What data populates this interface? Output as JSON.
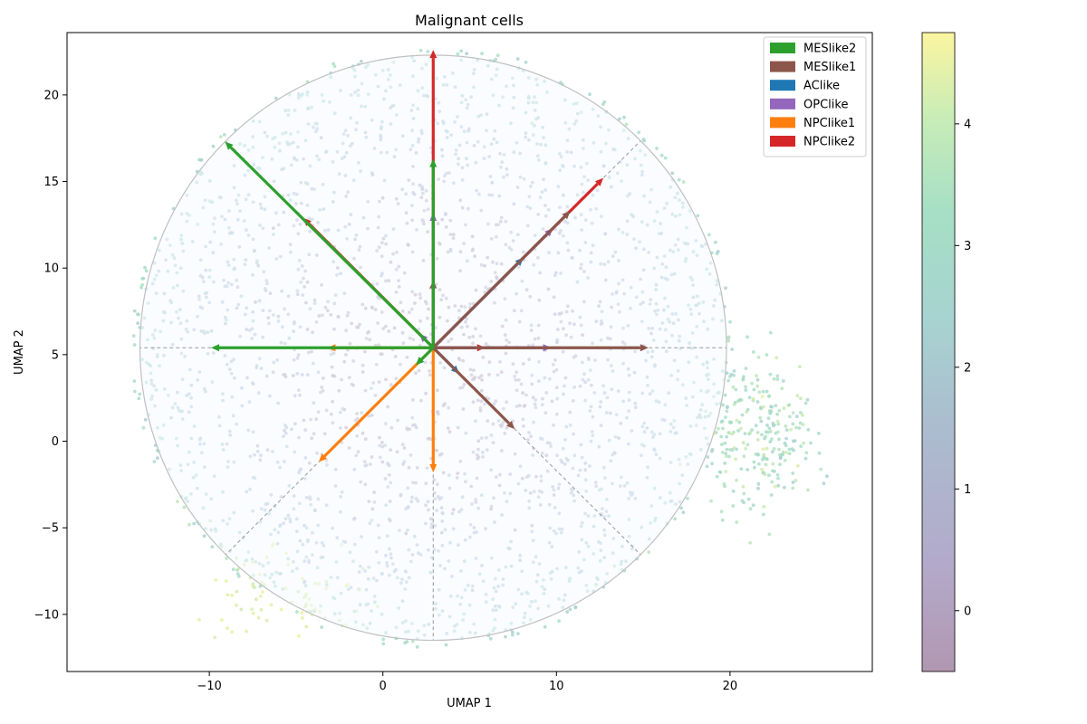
{
  "chart_data": {
    "type": "scatter",
    "title": "Malignant cells",
    "xlabel": "UMAP 1",
    "ylabel": "UMAP 2",
    "xlim": [
      -18.2,
      28.2
    ],
    "ylim": [
      -13.3,
      23.6
    ],
    "xticks": [
      -10,
      0,
      10,
      20
    ],
    "yticks": [
      -10,
      -5,
      0,
      5,
      10,
      15,
      20
    ],
    "grid": false,
    "legend_position": "top-right",
    "circle": {
      "center": [
        2.9,
        5.4
      ],
      "radius": 16.9
    },
    "sector_dividers_deg": [
      0,
      45,
      135,
      180,
      225,
      270,
      315
    ],
    "series": [
      {
        "name": "MESlike2",
        "color": "#2ca02c",
        "arrows": [
          [
            -9.1,
            17.3
          ],
          [
            2.9,
            16.3
          ],
          [
            -9.9,
            5.4
          ],
          [
            1.9,
            4.4
          ]
        ]
      },
      {
        "name": "MESlike1",
        "color": "#8c564b",
        "arrows": [
          [
            2.9,
            9.3
          ],
          [
            10.8,
            13.3
          ],
          [
            15.3,
            5.4
          ],
          [
            7.6,
            0.7
          ]
        ]
      },
      {
        "name": "AClike",
        "color": "#1f77b4",
        "arrows": [
          [
            8.1,
            10.6
          ],
          [
            4.4,
            3.9
          ]
        ]
      },
      {
        "name": "OPClike",
        "color": "#9467bd",
        "arrows": [
          [
            2.9,
            13.2
          ],
          [
            9.8,
            12.3
          ],
          [
            9.7,
            5.4
          ],
          [
            2.1,
            6.2
          ]
        ]
      },
      {
        "name": "NPClike1",
        "color": "#ff7f0e",
        "arrows": [
          [
            -3.2,
            5.4
          ],
          [
            -3.7,
            -1.2
          ],
          [
            2.9,
            -1.8
          ]
        ]
      },
      {
        "name": "NPClike2",
        "color": "#d62728",
        "arrows": [
          [
            2.9,
            22.6
          ],
          [
            12.7,
            15.2
          ],
          [
            -4.6,
            12.9
          ],
          [
            5.9,
            5.4
          ]
        ]
      }
    ],
    "points_note": "",
    "colorbar": {
      "ticks": [
        0,
        1,
        2,
        3,
        4
      ],
      "range": [
        -0.5,
        4.75
      ],
      "colormap": "viridis-like (alpha)"
    }
  },
  "colors": {
    "circle_fill": "#f6faff",
    "circle_edge": "#c0c0c0",
    "divider": "#999999"
  }
}
